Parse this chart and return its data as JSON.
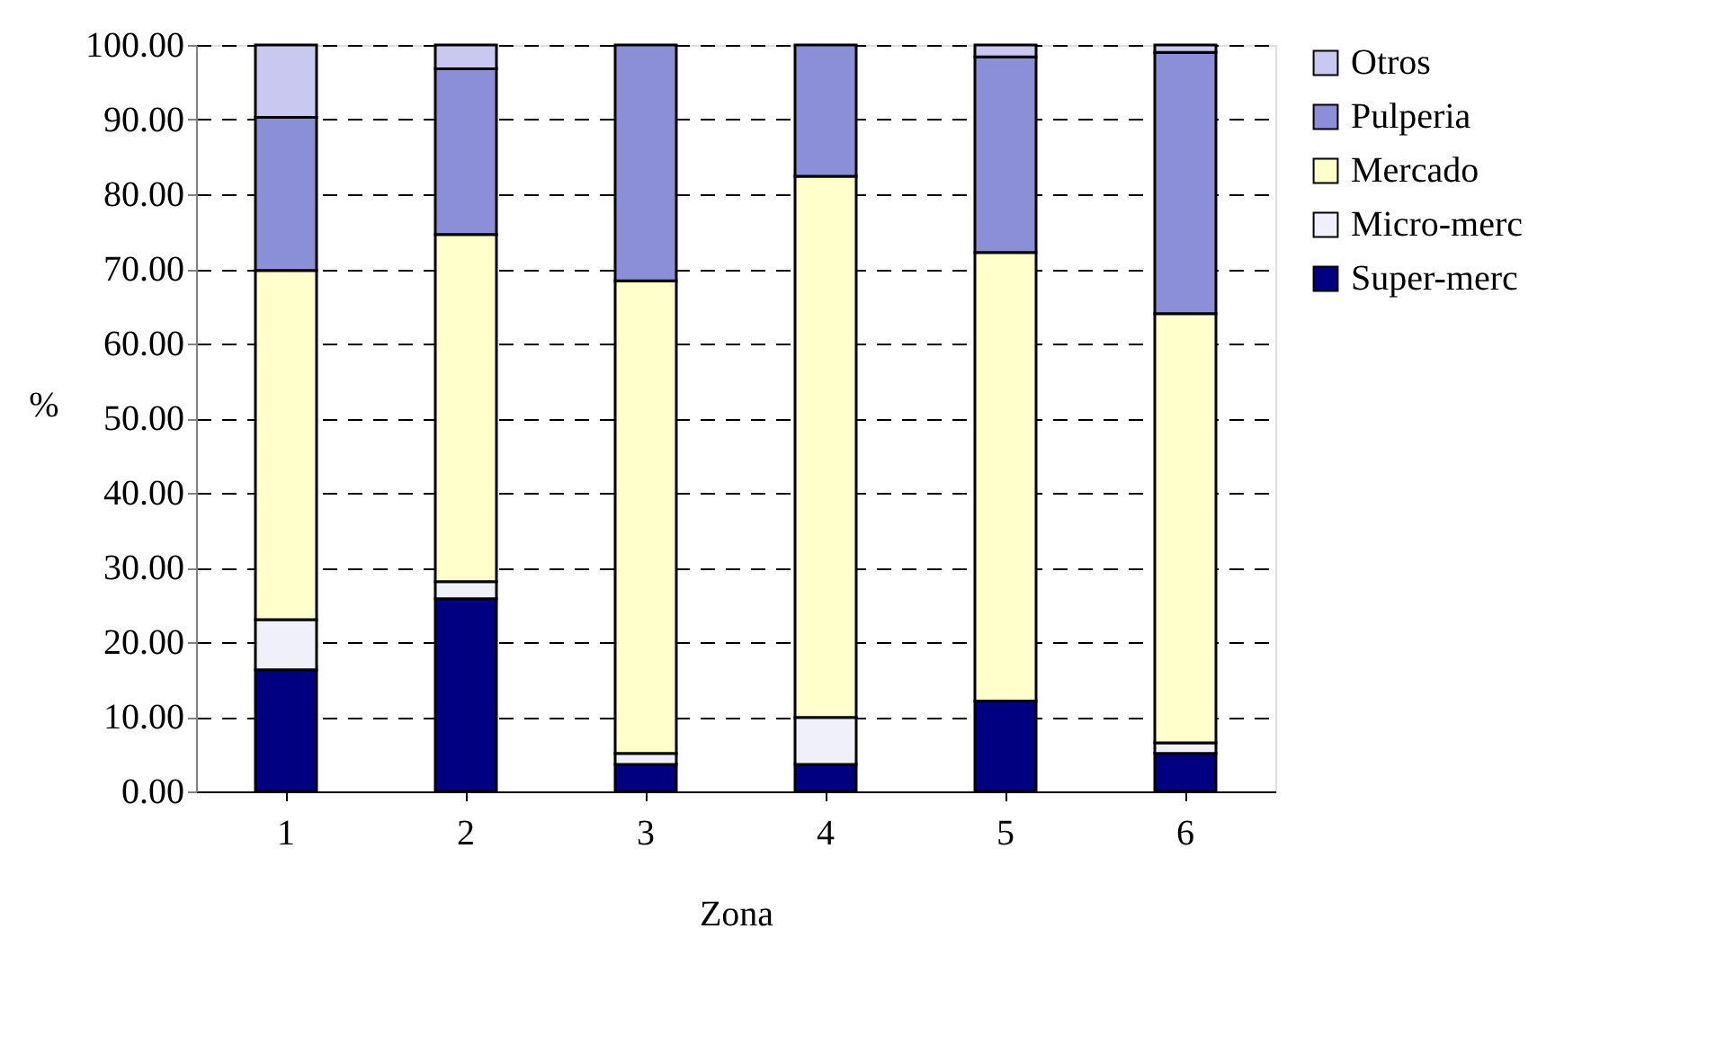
{
  "chart_data": {
    "type": "bar",
    "stacked": true,
    "xlabel": "Zona",
    "ylabel": "%",
    "categories": [
      "1",
      "2",
      "3",
      "4",
      "5",
      "6"
    ],
    "series": [
      {
        "name": "Super-merc",
        "color": "#000080",
        "values": [
          16.3,
          25.8,
          3.6,
          3.6,
          12.1,
          5.1
        ]
      },
      {
        "name": "Micro-merc",
        "color": "#f0f0fa",
        "values": [
          6.7,
          2.3,
          1.5,
          6.3,
          0,
          1.4
        ]
      },
      {
        "name": "Mercado",
        "color": "#ffffcc",
        "values": [
          46.8,
          46.5,
          63.3,
          72.5,
          60.1,
          57.5
        ]
      },
      {
        "name": "Pulperia",
        "color": "#8a8fd8",
        "values": [
          20.5,
          22.2,
          31.6,
          17.6,
          26.2,
          35.0
        ]
      },
      {
        "name": "Otros",
        "color": "#c8c8f0",
        "values": [
          9.7,
          3.2,
          0,
          0,
          1.6,
          1.0
        ]
      }
    ],
    "ylim": [
      0,
      100
    ],
    "yticks": [
      {
        "value": 0,
        "label": "0.00"
      },
      {
        "value": 10,
        "label": "10.00"
      },
      {
        "value": 20,
        "label": "20.00"
      },
      {
        "value": 30,
        "label": "30.00"
      },
      {
        "value": 40,
        "label": "40.00"
      },
      {
        "value": 50,
        "label": "50.00"
      },
      {
        "value": 60,
        "label": "60.00"
      },
      {
        "value": 70,
        "label": "70.00"
      },
      {
        "value": 80,
        "label": "80.00"
      },
      {
        "value": 90,
        "label": "90.00"
      },
      {
        "value": 100,
        "label": "100.00"
      }
    ],
    "grid": "y",
    "legend": "right"
  }
}
